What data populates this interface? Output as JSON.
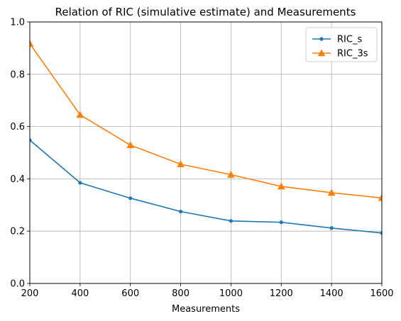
{
  "chart_data": {
    "type": "line",
    "title": "Relation of RIC (simulative estimate) and Measurements",
    "xlabel": "Measurements",
    "ylabel": "",
    "xlim": [
      200,
      1600
    ],
    "ylim": [
      0,
      1.0
    ],
    "x": [
      200,
      400,
      600,
      800,
      1000,
      1200,
      1400,
      1600
    ],
    "xticks": [
      "200",
      "400",
      "600",
      "800",
      "1000",
      "1200",
      "1400",
      "1600"
    ],
    "yticks": [
      "0.0",
      "0.2",
      "0.4",
      "0.6",
      "0.8",
      "1.0"
    ],
    "grid": true,
    "legend_position": "top-right",
    "series": [
      {
        "name": "RIC_s",
        "values": [
          0.548,
          0.385,
          0.326,
          0.275,
          0.239,
          0.234,
          0.212,
          0.193
        ],
        "color": "#1f77b4",
        "marker": "point"
      },
      {
        "name": "RIC_3s",
        "values": [
          0.917,
          0.645,
          0.529,
          0.456,
          0.416,
          0.371,
          0.347,
          0.327
        ],
        "color": "#ff7f0e",
        "marker": "triangle"
      }
    ]
  }
}
